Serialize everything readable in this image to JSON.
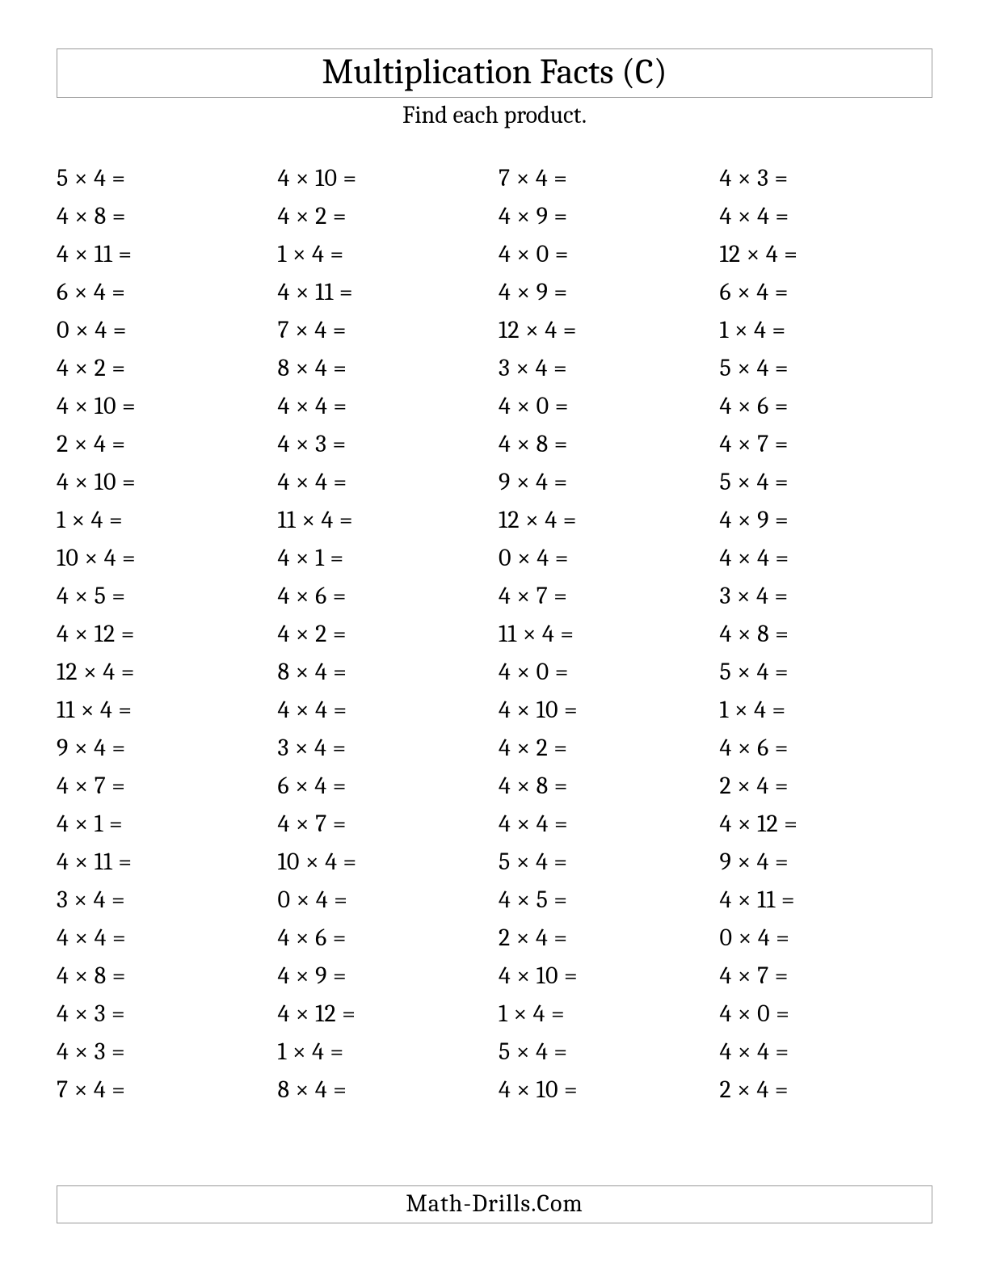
{
  "title": "Multiplication Facts (C)",
  "subtitle": "Find each product.",
  "footer": "Math-Drills.Com",
  "style": {
    "title_fontsize": 44,
    "subtitle_fontsize": 30,
    "problem_fontsize": 30,
    "footer_fontsize": 30,
    "text_color": "#000000",
    "background_color": "#ffffff",
    "border_color": "#999999",
    "font_family": "Cambria, Georgia, serif",
    "columns": 4,
    "rows": 25,
    "operator_symbol": "×",
    "equals_symbol": "="
  },
  "problems": [
    [
      [
        5,
        4
      ],
      [
        4,
        10
      ],
      [
        7,
        4
      ],
      [
        4,
        3
      ]
    ],
    [
      [
        4,
        8
      ],
      [
        4,
        2
      ],
      [
        4,
        9
      ],
      [
        4,
        4
      ]
    ],
    [
      [
        4,
        11
      ],
      [
        1,
        4
      ],
      [
        4,
        0
      ],
      [
        12,
        4
      ]
    ],
    [
      [
        6,
        4
      ],
      [
        4,
        11
      ],
      [
        4,
        9
      ],
      [
        6,
        4
      ]
    ],
    [
      [
        0,
        4
      ],
      [
        7,
        4
      ],
      [
        12,
        4
      ],
      [
        1,
        4
      ]
    ],
    [
      [
        4,
        2
      ],
      [
        8,
        4
      ],
      [
        3,
        4
      ],
      [
        5,
        4
      ]
    ],
    [
      [
        4,
        10
      ],
      [
        4,
        4
      ],
      [
        4,
        0
      ],
      [
        4,
        6
      ]
    ],
    [
      [
        2,
        4
      ],
      [
        4,
        3
      ],
      [
        4,
        8
      ],
      [
        4,
        7
      ]
    ],
    [
      [
        4,
        10
      ],
      [
        4,
        4
      ],
      [
        9,
        4
      ],
      [
        5,
        4
      ]
    ],
    [
      [
        1,
        4
      ],
      [
        11,
        4
      ],
      [
        12,
        4
      ],
      [
        4,
        9
      ]
    ],
    [
      [
        10,
        4
      ],
      [
        4,
        1
      ],
      [
        0,
        4
      ],
      [
        4,
        4
      ]
    ],
    [
      [
        4,
        5
      ],
      [
        4,
        6
      ],
      [
        4,
        7
      ],
      [
        3,
        4
      ]
    ],
    [
      [
        4,
        12
      ],
      [
        4,
        2
      ],
      [
        11,
        4
      ],
      [
        4,
        8
      ]
    ],
    [
      [
        12,
        4
      ],
      [
        8,
        4
      ],
      [
        4,
        0
      ],
      [
        5,
        4
      ]
    ],
    [
      [
        11,
        4
      ],
      [
        4,
        4
      ],
      [
        4,
        10
      ],
      [
        1,
        4
      ]
    ],
    [
      [
        9,
        4
      ],
      [
        3,
        4
      ],
      [
        4,
        2
      ],
      [
        4,
        6
      ]
    ],
    [
      [
        4,
        7
      ],
      [
        6,
        4
      ],
      [
        4,
        8
      ],
      [
        2,
        4
      ]
    ],
    [
      [
        4,
        1
      ],
      [
        4,
        7
      ],
      [
        4,
        4
      ],
      [
        4,
        12
      ]
    ],
    [
      [
        4,
        11
      ],
      [
        10,
        4
      ],
      [
        5,
        4
      ],
      [
        9,
        4
      ]
    ],
    [
      [
        3,
        4
      ],
      [
        0,
        4
      ],
      [
        4,
        5
      ],
      [
        4,
        11
      ]
    ],
    [
      [
        4,
        4
      ],
      [
        4,
        6
      ],
      [
        2,
        4
      ],
      [
        0,
        4
      ]
    ],
    [
      [
        4,
        8
      ],
      [
        4,
        9
      ],
      [
        4,
        10
      ],
      [
        4,
        7
      ]
    ],
    [
      [
        4,
        3
      ],
      [
        4,
        12
      ],
      [
        1,
        4
      ],
      [
        4,
        0
      ]
    ],
    [
      [
        4,
        3
      ],
      [
        1,
        4
      ],
      [
        5,
        4
      ],
      [
        4,
        4
      ]
    ],
    [
      [
        7,
        4
      ],
      [
        8,
        4
      ],
      [
        4,
        10
      ],
      [
        2,
        4
      ]
    ]
  ]
}
